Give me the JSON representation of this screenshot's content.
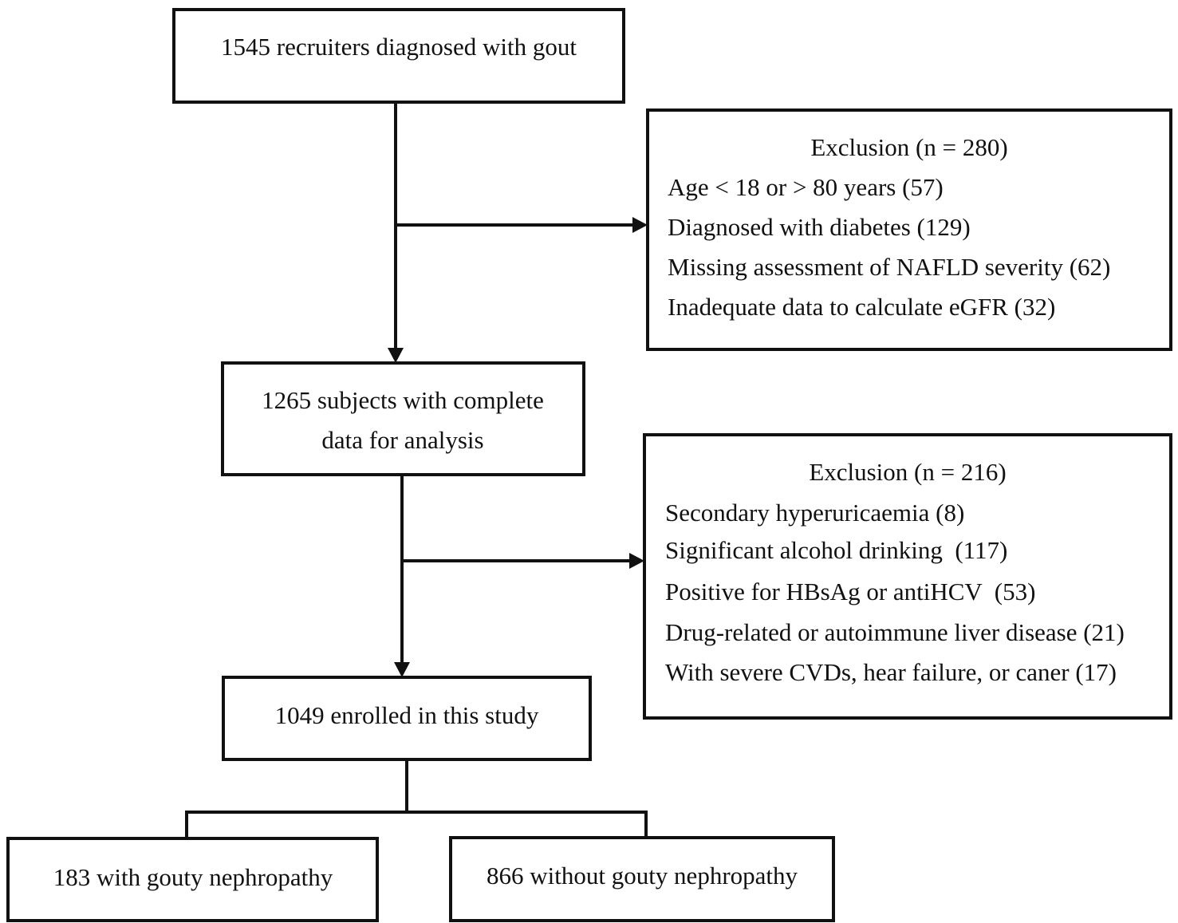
{
  "nodes": [
    {
      "lines": [
        "1545 recruiters diagnosed with gout"
      ]
    },
    {
      "lines": [
        "1265 subjects with complete",
        "data for analysis"
      ]
    },
    {
      "lines": [
        "1049 enrolled in this study"
      ]
    },
    {
      "lines": [
        "183 with gouty nephropathy"
      ]
    },
    {
      "lines": [
        "866 without gouty nephropathy"
      ]
    }
  ],
  "exclusions": [
    {
      "title": "Exclusion (n = 280)",
      "items": [
        "Age < 18 or > 80 years (57)",
        "Diagnosed with diabetes (129)",
        "Missing assessment of NAFLD severity (62)",
        "Inadequate data to calculate eGFR (32)"
      ]
    },
    {
      "title": "Exclusion (n = 216)",
      "items": [
        "Secondary hyperuricaemia (8)",
        "Significant alcohol drinking  (117)",
        "Positive for HBsAg or antiHCV  (53)",
        "Drug-related or autoimmune liver disease (21)",
        "With severe CVDs, hear failure, or caner (17)"
      ]
    }
  ]
}
